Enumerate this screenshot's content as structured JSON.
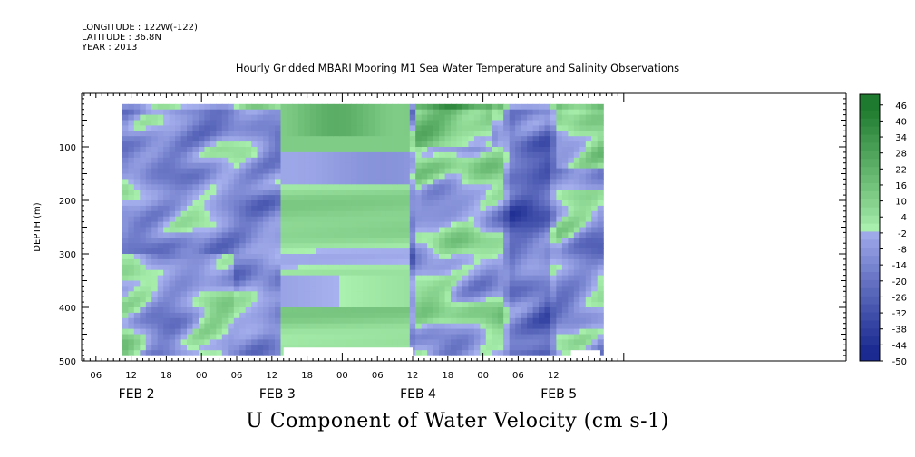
{
  "header": {
    "longitude": "LONGITUDE : 122W(-122)",
    "latitude": "LATITUDE : 36.8N",
    "year": "YEAR : 2013"
  },
  "chart_data": {
    "type": "heatmap",
    "title": "Hourly Gridded MBARI Mooring M1 Sea Water Temperature and Salinity Observations",
    "xlabel": "U Component of Water Velocity (cm s-1)",
    "ylabel": "DEPTH (m)",
    "ylim": [
      0,
      500
    ],
    "y_ticks": [
      100,
      200,
      300,
      400,
      500
    ],
    "x_hour_ticks": [
      "06",
      "12",
      "18",
      "00",
      "06",
      "12",
      "18",
      "00",
      "06",
      "12",
      "18",
      "00",
      "06",
      "12"
    ],
    "date_labels": [
      "FEB  2",
      "FEB  3",
      "FEB  4",
      "FEB  5"
    ],
    "colorbar": {
      "min": -50,
      "max": 50,
      "step": 3,
      "labels": [
        46,
        40,
        34,
        28,
        22,
        16,
        10,
        4,
        -2,
        -8,
        -14,
        -20,
        -26,
        -32,
        -38,
        -44,
        -50
      ],
      "colors": {
        "strong_negative": "#1a2a90",
        "weak_negative": "#a9b3f0",
        "weak_positive": "#aaf0ae",
        "strong_positive": "#1e7a2e"
      }
    },
    "field_note": "U velocity field, depth 20-490 m, Feb 2 10:00 to Feb 5 20:00",
    "grid": false
  }
}
